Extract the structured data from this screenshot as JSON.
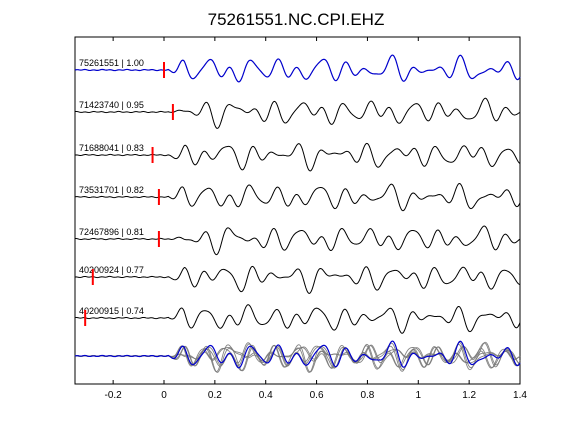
{
  "chart_data": {
    "type": "line",
    "title": "75261551.NC.CPI.EHZ",
    "xlabel": "",
    "ylabel": "",
    "xlim": [
      -0.35,
      1.4
    ],
    "xticks": [
      -0.2,
      0,
      0.2,
      0.4,
      0.6,
      0.8,
      1.0,
      1.2,
      1.4
    ],
    "xtick_labels": [
      "-0.2",
      "0",
      "0.2",
      "0.4",
      "0.6",
      "0.8",
      "1",
      "1.2",
      "1.4"
    ],
    "grid": false,
    "colors": {
      "reference": "#0000cc",
      "traces": "#000000",
      "pick": "#ff0000",
      "overlay": "#777777"
    },
    "series": [
      {
        "label": "75261551 | 1.00",
        "id": "75261551",
        "correlation": 1.0,
        "pick_time": 0.0,
        "shift": 0.0,
        "reference": true
      },
      {
        "label": "71423740 | 0.95",
        "id": "71423740",
        "correlation": 0.95,
        "pick_time": 0.035,
        "shift": 0.0
      },
      {
        "label": "71688041 | 0.83",
        "id": "71688041",
        "correlation": 0.83,
        "pick_time": -0.045,
        "shift": 0.0
      },
      {
        "label": "73531701 | 0.82",
        "id": "73531701",
        "correlation": 0.82,
        "pick_time": -0.02,
        "shift": 0.0
      },
      {
        "label": "72467896 | 0.81",
        "id": "72467896",
        "correlation": 0.81,
        "pick_time": -0.02,
        "shift": 0.0
      },
      {
        "label": "40200924 | 0.77",
        "id": "40200924",
        "correlation": 0.77,
        "pick_time": -0.28,
        "shift": 0.0
      },
      {
        "label": "40200915 | 0.74",
        "id": "40200915",
        "correlation": 0.74,
        "pick_time": -0.31,
        "shift": 0.0
      }
    ],
    "overlay": "stack of all traces"
  }
}
